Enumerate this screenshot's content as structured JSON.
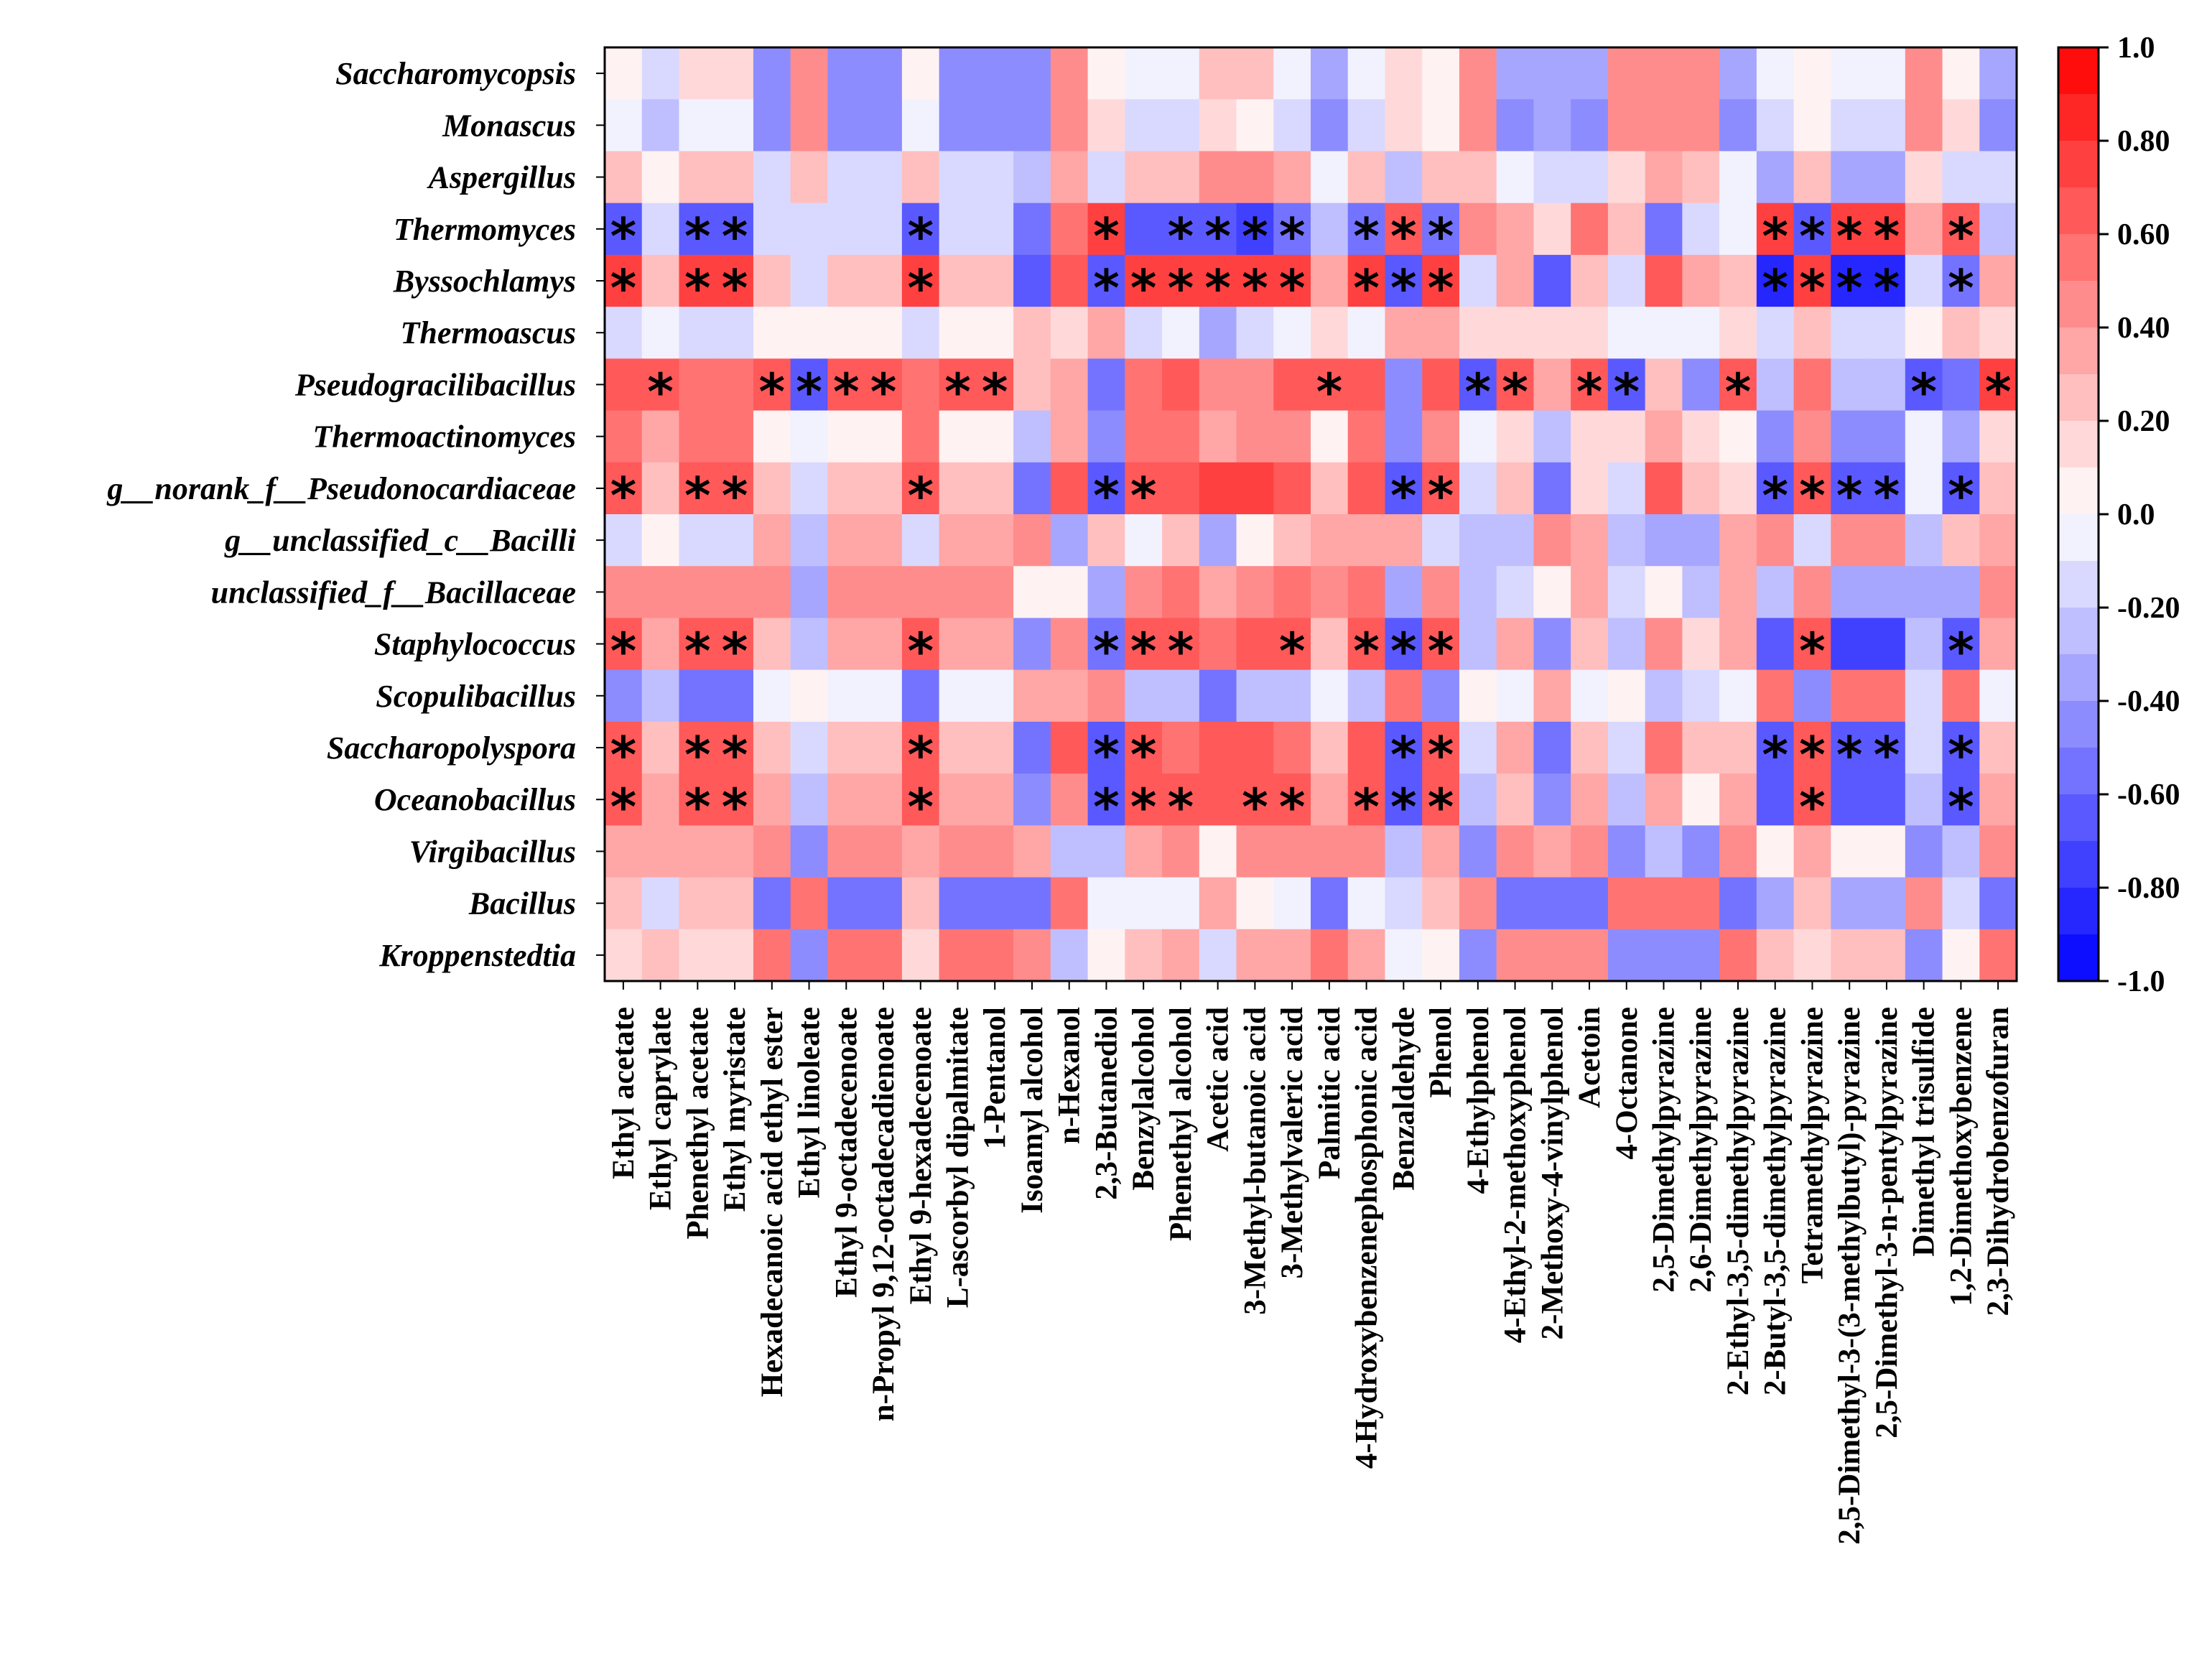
{
  "chart_data": {
    "type": "heatmap",
    "title": "",
    "rows": [
      "Saccharomycopsis",
      "Monascus",
      "Aspergillus",
      "Thermomyces",
      "Byssochlamys",
      "Thermoascus",
      "Pseudogracilibacillus",
      "Thermoactinomyces",
      "g__norank_f__Pseudonocardiaceae",
      "g__unclassified_c__Bacilli",
      "unclassified_f__Bacillaceae",
      "Staphylococcus",
      "Scopulibacillus",
      "Saccharopolyspora",
      "Oceanobacillus",
      "Virgibacillus",
      "Bacillus",
      "Kroppenstedtia"
    ],
    "columns": [
      "Ethyl acetate",
      "Ethyl caprylate",
      "Phenethyl acetate",
      "Ethyl myristate",
      "Hexadecanoic acid ethyl ester",
      "Ethyl linoleate",
      "Ethyl 9-octadecenoate",
      "n-Propyl 9,12-octadecadienoate",
      "Ethyl 9-hexadecenoate",
      "L-ascorbyl dipalmitate",
      "1-Pentanol",
      "Isoamyl alcohol",
      "n-Hexanol",
      "2,3-Butanediol",
      "Benzylalcohol",
      "Phenethyl alcohol",
      "Acetic acid",
      "3-Methyl-butanoic acid",
      "3-Methylvaleric acid",
      "Palmitic acid",
      "4-Hydroxybenzenephosphonic acid",
      "Benzaldehyde",
      "Phenol",
      "4-Ethylphenol",
      "4-Ethyl-2-methoxyphenol",
      "2-Methoxy-4-vinylphenol",
      "Acetoin",
      "4-Octanone",
      "2,5-Dimethylpyrazine",
      "2,6-Dimethylpyrazine",
      "2-Ethyl-3,5-dimethylpyrazine",
      "2-Butyl-3,5-dimethylpyrazine",
      "Tetramethylpyrazine",
      "2,5-Dimethyl-3-(3-methylbutyl)-pyrazine",
      "2,5-Dimethyl-3-n-pentylpyrazine",
      "Dimethyl trisulfide",
      "1,2-Dimethoxybenzene",
      "2,3-Dihydrobenzofuran"
    ],
    "values": [
      [
        0.05,
        -0.2,
        0.1,
        0.1,
        -0.5,
        0.4,
        -0.5,
        -0.5,
        0.05,
        -0.5,
        -0.5,
        -0.5,
        0.4,
        0.05,
        -0.1,
        -0.1,
        0.2,
        0.2,
        -0.1,
        -0.4,
        -0.1,
        0.1,
        0.05,
        0.4,
        -0.4,
        -0.4,
        -0.4,
        0.4,
        0.4,
        0.4,
        -0.4,
        -0.1,
        0.05,
        -0.1,
        -0.1,
        0.4,
        0.05,
        -0.4
      ],
      [
        -0.05,
        -0.3,
        -0.05,
        -0.05,
        -0.5,
        0.45,
        -0.5,
        -0.5,
        -0.05,
        -0.5,
        -0.5,
        -0.5,
        0.4,
        0.1,
        -0.15,
        -0.15,
        0.15,
        0.05,
        -0.2,
        -0.45,
        -0.15,
        0.1,
        0.05,
        0.45,
        -0.45,
        -0.4,
        -0.45,
        0.45,
        0.4,
        0.45,
        -0.45,
        -0.15,
        0.05,
        -0.2,
        -0.2,
        0.45,
        0.1,
        -0.45
      ],
      [
        0.25,
        0.05,
        0.25,
        0.25,
        -0.2,
        0.25,
        -0.2,
        -0.2,
        0.25,
        -0.2,
        -0.2,
        -0.3,
        0.3,
        -0.2,
        0.2,
        0.2,
        0.45,
        0.4,
        0.35,
        -0.1,
        0.2,
        -0.3,
        0.2,
        0.2,
        -0.1,
        -0.2,
        -0.2,
        0.1,
        0.3,
        0.2,
        -0.1,
        -0.4,
        0.25,
        -0.4,
        -0.4,
        0.15,
        -0.2,
        -0.2
      ],
      [
        -0.7,
        -0.2,
        -0.7,
        -0.7,
        -0.2,
        -0.2,
        -0.2,
        -0.2,
        -0.7,
        -0.2,
        -0.2,
        -0.6,
        0.5,
        0.7,
        -0.7,
        -0.7,
        -0.7,
        -0.75,
        -0.6,
        -0.3,
        -0.6,
        0.6,
        -0.6,
        0.4,
        0.3,
        0.1,
        0.5,
        0.2,
        -0.6,
        -0.2,
        -0.1,
        0.7,
        -0.7,
        0.7,
        0.7,
        0.3,
        0.6,
        -0.3
      ],
      [
        0.7,
        0.2,
        0.7,
        0.7,
        0.2,
        -0.2,
        0.2,
        0.2,
        0.7,
        0.2,
        0.2,
        -0.7,
        0.6,
        -0.7,
        0.7,
        0.7,
        0.75,
        0.7,
        0.7,
        0.3,
        0.7,
        -0.7,
        0.7,
        -0.2,
        0.3,
        -0.7,
        0.2,
        -0.2,
        0.65,
        0.3,
        0.2,
        -0.8,
        0.7,
        -0.8,
        -0.8,
        -0.2,
        -0.6,
        0.3
      ],
      [
        -0.15,
        -0.1,
        -0.2,
        -0.2,
        0.05,
        0.05,
        0.05,
        0.05,
        -0.2,
        0.05,
        0.05,
        0.2,
        0.1,
        0.3,
        -0.2,
        -0.1,
        -0.4,
        -0.2,
        -0.1,
        0.1,
        -0.1,
        0.3,
        0.3,
        0.1,
        0.1,
        0.1,
        0.1,
        -0.1,
        -0.1,
        -0.1,
        0.1,
        -0.2,
        0.2,
        -0.2,
        -0.2,
        0.05,
        0.2,
        0.1
      ],
      [
        0.6,
        0.6,
        0.5,
        0.5,
        0.6,
        -0.7,
        0.6,
        0.6,
        0.5,
        0.6,
        0.6,
        0.2,
        0.3,
        -0.6,
        0.55,
        0.6,
        0.45,
        0.45,
        0.6,
        0.6,
        0.6,
        -0.5,
        0.6,
        -0.7,
        0.6,
        0.3,
        0.6,
        -0.7,
        0.2,
        -0.5,
        0.6,
        -0.3,
        0.5,
        -0.3,
        -0.3,
        -0.7,
        -0.6,
        0.75
      ],
      [
        0.5,
        0.3,
        0.5,
        0.5,
        0.05,
        -0.05,
        0.05,
        0.05,
        0.5,
        0.05,
        0.05,
        -0.3,
        0.3,
        -0.45,
        0.55,
        0.55,
        0.3,
        0.45,
        0.45,
        0.05,
        0.55,
        -0.45,
        0.45,
        -0.05,
        0.1,
        -0.3,
        0.1,
        0.1,
        0.3,
        0.1,
        0.05,
        -0.45,
        0.45,
        -0.45,
        -0.45,
        -0.05,
        -0.4,
        0.1
      ],
      [
        0.65,
        0.25,
        0.65,
        0.65,
        0.2,
        -0.2,
        0.2,
        0.2,
        0.65,
        0.2,
        0.2,
        -0.6,
        0.6,
        -0.65,
        0.65,
        0.6,
        0.7,
        0.7,
        0.65,
        0.2,
        0.65,
        -0.65,
        0.65,
        -0.2,
        0.2,
        -0.6,
        0.1,
        -0.2,
        0.6,
        0.2,
        0.1,
        -0.65,
        0.65,
        -0.65,
        -0.65,
        -0.1,
        -0.65,
        0.2
      ],
      [
        -0.2,
        0.05,
        -0.2,
        -0.2,
        0.3,
        -0.3,
        0.3,
        0.3,
        -0.2,
        0.3,
        0.3,
        0.4,
        -0.4,
        0.2,
        -0.1,
        0.2,
        -0.35,
        0.05,
        0.2,
        0.3,
        0.3,
        0.3,
        -0.2,
        -0.3,
        -0.3,
        0.4,
        0.3,
        -0.3,
        -0.4,
        -0.4,
        0.3,
        0.4,
        -0.2,
        0.4,
        0.4,
        -0.3,
        0.2,
        0.3
      ],
      [
        0.4,
        0.4,
        0.4,
        0.4,
        0.4,
        -0.4,
        0.4,
        0.4,
        0.4,
        0.4,
        0.4,
        0.05,
        0.05,
        -0.4,
        0.4,
        0.5,
        0.35,
        0.4,
        0.5,
        0.4,
        0.5,
        -0.4,
        0.4,
        -0.3,
        -0.2,
        0.05,
        0.3,
        -0.2,
        0.05,
        -0.3,
        0.3,
        -0.3,
        0.4,
        -0.4,
        -0.4,
        -0.4,
        -0.4,
        0.4
      ],
      [
        0.65,
        0.35,
        0.65,
        0.65,
        0.25,
        -0.25,
        0.3,
        0.3,
        0.65,
        0.3,
        0.3,
        -0.5,
        0.45,
        -0.6,
        0.65,
        0.65,
        0.55,
        0.6,
        0.65,
        0.25,
        0.65,
        -0.65,
        0.65,
        -0.3,
        0.3,
        -0.5,
        0.2,
        -0.3,
        0.45,
        0.1,
        0.3,
        -0.7,
        0.6,
        -0.75,
        -0.75,
        -0.3,
        -0.65,
        0.3
      ],
      [
        -0.5,
        -0.3,
        -0.55,
        -0.55,
        -0.05,
        0.05,
        -0.05,
        -0.05,
        -0.55,
        -0.05,
        -0.05,
        0.3,
        0.35,
        0.45,
        -0.3,
        -0.3,
        -0.6,
        -0.3,
        -0.3,
        -0.05,
        -0.3,
        0.5,
        -0.5,
        0.05,
        -0.05,
        0.3,
        -0.05,
        0.05,
        -0.3,
        -0.2,
        -0.05,
        0.55,
        -0.5,
        0.55,
        0.55,
        -0.2,
        0.5,
        -0.05
      ],
      [
        0.65,
        0.2,
        0.65,
        0.65,
        0.2,
        -0.2,
        0.2,
        0.2,
        0.65,
        0.2,
        0.2,
        -0.6,
        0.6,
        -0.65,
        0.65,
        0.55,
        0.6,
        0.6,
        0.55,
        0.2,
        0.6,
        -0.65,
        0.6,
        -0.2,
        0.3,
        -0.6,
        0.2,
        -0.2,
        0.5,
        0.2,
        0.2,
        -0.65,
        0.6,
        -0.65,
        -0.65,
        -0.2,
        -0.65,
        0.2
      ],
      [
        0.6,
        0.3,
        0.6,
        0.6,
        0.3,
        -0.3,
        0.3,
        0.3,
        0.6,
        0.3,
        0.3,
        -0.5,
        0.4,
        -0.7,
        0.6,
        0.6,
        0.6,
        0.6,
        0.65,
        0.3,
        0.6,
        -0.65,
        0.6,
        -0.3,
        0.2,
        -0.5,
        0.3,
        -0.3,
        0.3,
        0.05,
        0.3,
        -0.7,
        0.6,
        -0.7,
        -0.7,
        -0.3,
        -0.7,
        0.3
      ],
      [
        0.3,
        0.35,
        0.3,
        0.3,
        0.45,
        -0.5,
        0.45,
        0.45,
        0.3,
        0.45,
        0.45,
        0.3,
        -0.3,
        -0.3,
        0.35,
        0.45,
        0.05,
        0.45,
        0.45,
        0.45,
        0.45,
        -0.3,
        0.3,
        -0.5,
        0.4,
        0.3,
        0.4,
        -0.5,
        -0.3,
        -0.5,
        0.4,
        0.05,
        0.3,
        0.05,
        0.05,
        -0.5,
        -0.3,
        0.45
      ],
      [
        0.2,
        -0.2,
        0.2,
        0.2,
        -0.55,
        0.5,
        -0.55,
        -0.55,
        0.2,
        -0.55,
        -0.55,
        -0.6,
        0.55,
        -0.05,
        -0.1,
        -0.1,
        0.35,
        0.05,
        -0.05,
        -0.55,
        -0.05,
        -0.2,
        0.2,
        0.45,
        -0.55,
        -0.6,
        -0.55,
        0.5,
        0.5,
        0.5,
        -0.55,
        -0.35,
        0.2,
        -0.35,
        -0.35,
        0.45,
        -0.2,
        -0.55
      ],
      [
        0.1,
        0.25,
        0.1,
        0.1,
        0.5,
        -0.5,
        0.5,
        0.5,
        0.1,
        0.5,
        0.5,
        0.4,
        -0.3,
        0.05,
        0.2,
        0.3,
        -0.2,
        0.3,
        0.35,
        0.5,
        0.3,
        -0.05,
        0.05,
        -0.5,
        0.45,
        0.4,
        0.45,
        -0.45,
        -0.45,
        -0.45,
        0.5,
        0.25,
        0.1,
        0.25,
        0.25,
        -0.45,
        0.05,
        0.5
      ]
    ],
    "significant": [
      [],
      [],
      [],
      [
        0,
        2,
        3,
        8,
        13,
        15,
        16,
        17,
        18,
        20,
        21,
        22,
        31,
        32,
        33,
        34,
        36
      ],
      [
        0,
        2,
        3,
        8,
        13,
        14,
        15,
        16,
        17,
        18,
        20,
        21,
        22,
        31,
        32,
        33,
        34,
        36
      ],
      [],
      [
        1,
        4,
        5,
        6,
        7,
        9,
        10,
        19,
        23,
        24,
        26,
        27,
        30,
        35,
        37
      ],
      [],
      [
        0,
        2,
        3,
        8,
        13,
        14,
        21,
        22,
        31,
        32,
        33,
        34,
        36
      ],
      [],
      [],
      [
        0,
        2,
        3,
        8,
        13,
        14,
        15,
        18,
        20,
        21,
        22,
        32,
        36
      ],
      [],
      [
        0,
        2,
        3,
        8,
        13,
        14,
        21,
        22,
        31,
        32,
        33,
        34,
        36
      ],
      [
        0,
        2,
        3,
        8,
        13,
        14,
        15,
        17,
        18,
        20,
        21,
        22,
        32,
        36
      ],
      [],
      [],
      []
    ],
    "significance_marker": "*",
    "colorbar": {
      "min": -1.0,
      "max": 1.0,
      "ticks": [
        "1.0",
        "0.80",
        "0.60",
        "0.40",
        "0.20",
        "0.0",
        "-0.20",
        "-0.40",
        "-0.60",
        "-0.80",
        "-1.0"
      ],
      "low_color": "#0000ff",
      "mid_color": "#ffffff",
      "high_color": "#ff0000"
    }
  }
}
